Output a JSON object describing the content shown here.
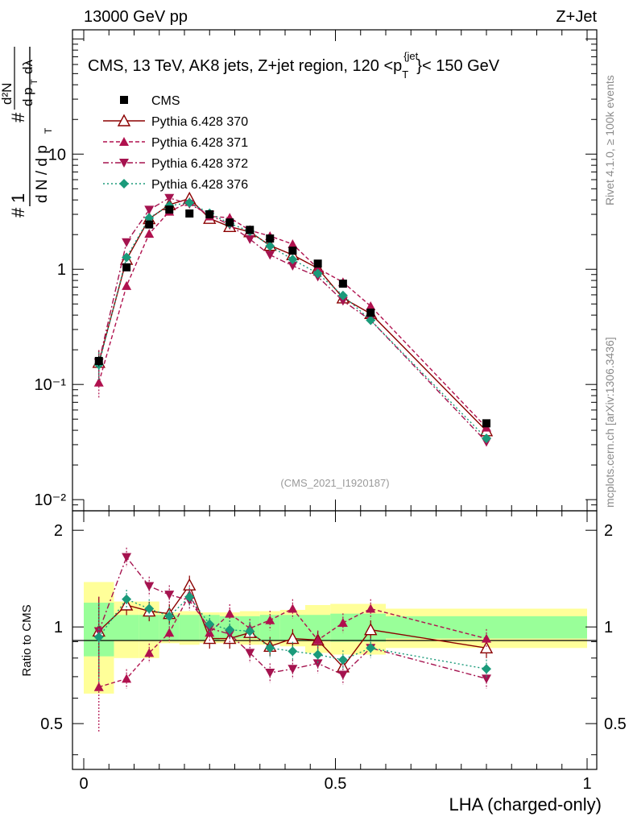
{
  "header": {
    "left": "13000 GeV pp",
    "right": "Z+Jet"
  },
  "side_labels": {
    "rivet": "Rivet 4.1.0, ≥ 100k events",
    "mcplots": "mcplots.cern.ch [arXiv:1306.3436]"
  },
  "analysis_id": "(CMS_2021_I1920187)",
  "chart_data": {
    "type": "scatter",
    "title_parts": {
      "main": "CMS, 13 TeV, AK8 jets, Z+jet region, 120 <p",
      "sub": "T",
      "sup": "{jet",
      "tail": "}< 150 GeV"
    },
    "ylabel_parts": {
      "hash": "#",
      "one": "1",
      "dN": "d N / d p",
      "sub": "T",
      "d2N": "d²N",
      "dpT": "d p",
      "dlambda": "dλ"
    },
    "ratio_ylabel": "Ratio to CMS",
    "xlabel": "LHA (charged-only)",
    "xlim": [
      0,
      1
    ],
    "ylim": [
      0.008,
      120
    ],
    "ratio_ylim": [
      0.36,
      2.3
    ],
    "x_ticks": [
      "0",
      "0.5",
      "1"
    ],
    "x_tick_values": [
      0,
      0.5,
      1
    ],
    "y_ticks": [
      "10⁻²",
      "10⁻¹",
      "1",
      "10"
    ],
    "y_tick_values": [
      0.01,
      0.1,
      1,
      10
    ],
    "ratio_ticks": [
      "0.5",
      "1",
      "2"
    ],
    "ratio_tick_values": [
      0.5,
      1,
      2
    ],
    "bin_edges": [
      0,
      0.06,
      0.11,
      0.15,
      0.19,
      0.23,
      0.27,
      0.31,
      0.35,
      0.39,
      0.44,
      0.49,
      0.54,
      0.6,
      1.0
    ],
    "x": [
      0.03,
      0.085,
      0.13,
      0.17,
      0.21,
      0.25,
      0.29,
      0.33,
      0.37,
      0.415,
      0.465,
      0.515,
      0.57,
      0.8
    ],
    "data_values": [
      0.16,
      1.04,
      2.45,
      3.3,
      3.05,
      3.0,
      2.55,
      2.2,
      1.85,
      1.45,
      1.12,
      0.75,
      0.42,
      0.046
    ],
    "band_inner": [
      0.19,
      0.09,
      0.09,
      0.09,
      0.09,
      0.09,
      0.08,
      0.08,
      0.09,
      0.09,
      0.09,
      0.1,
      0.1,
      0.08
    ],
    "band_outer": [
      0.38,
      0.2,
      0.2,
      0.11,
      0.12,
      0.11,
      0.11,
      0.12,
      0.12,
      0.13,
      0.17,
      0.18,
      0.18,
      0.14
    ],
    "series": [
      {
        "name": "CMS",
        "marker": "square",
        "color": "#000000",
        "dash": "",
        "values": [
          0.16,
          1.04,
          2.45,
          3.3,
          3.05,
          3.0,
          2.55,
          2.2,
          1.85,
          1.45,
          1.12,
          0.75,
          0.42,
          0.046
        ]
      },
      {
        "name": "Pythia 6.428 370",
        "marker": "triangle-up-open",
        "color": "#8b0000",
        "dash": "",
        "ratios": [
          0.97,
          1.17,
          1.12,
          1.1,
          1.35,
          0.92,
          0.92,
          0.96,
          0.87,
          0.92,
          0.91,
          0.75,
          0.98,
          0.86
        ]
      },
      {
        "name": "Pythia 6.428 371",
        "marker": "triangle-up",
        "color": "#b0114e",
        "dash": "5,3",
        "ratios": [
          0.65,
          0.69,
          0.83,
          0.96,
          1.26,
          0.96,
          1.1,
          0.99,
          1.05,
          1.14,
          0.91,
          1.03,
          1.14,
          0.92
        ]
      },
      {
        "name": "Pythia 6.428 372",
        "marker": "triangle-down",
        "color": "#a5134f",
        "dash": "7,3,2,3",
        "ratios": [
          0.97,
          1.65,
          1.34,
          1.26,
          1.21,
          0.99,
          0.95,
          0.83,
          0.72,
          0.74,
          0.77,
          0.71,
          0.86,
          0.69
        ]
      },
      {
        "name": "Pythia 6.428 376",
        "marker": "diamond",
        "color": "#1a9a7a",
        "dash": "2,3",
        "ratios": [
          0.93,
          1.22,
          1.14,
          1.08,
          1.24,
          1.02,
          0.98,
          0.97,
          0.86,
          0.84,
          0.82,
          0.79,
          0.86,
          0.74
        ]
      }
    ],
    "legend_position": "top-left"
  }
}
